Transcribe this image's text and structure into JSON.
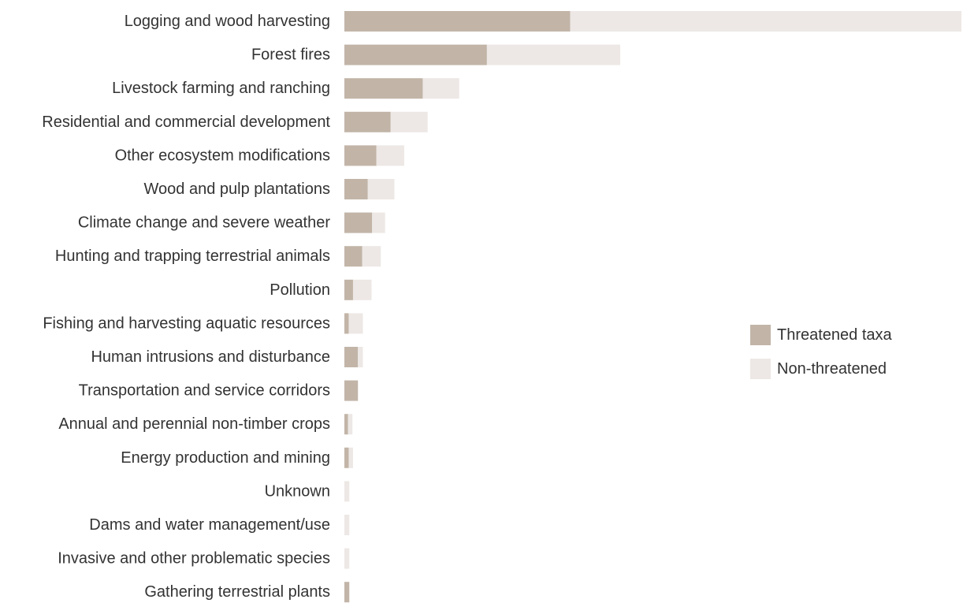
{
  "chart_data": {
    "type": "bar",
    "orientation": "horizontal",
    "stacked": true,
    "title": "",
    "xlabel": "",
    "ylabel": "",
    "xlim": [
      0,
      100
    ],
    "grid": false,
    "legend_position": "right",
    "categories": [
      "Logging and wood harvesting",
      "Forest fires",
      "Livestock farming and ranching",
      "Residential and commercial development",
      "Other ecosystem modifications",
      "Wood and pulp plantations",
      "Climate change and severe weather",
      "Hunting and trapping terrestrial animals",
      "Pollution",
      "Fishing and harvesting aquatic resources",
      "Human intrusions and disturbance",
      "Transportation and service corridors",
      "Annual and perennial non-timber crops",
      "Energy production and mining",
      "Unknown",
      "Dams and water management/use",
      "Invasive and other problematic species",
      "Gathering terrestrial plants"
    ],
    "series": [
      {
        "name": "Threatened taxa",
        "color": "#c2b5a8",
        "values": [
          36.6,
          23.1,
          12.7,
          7.5,
          5.2,
          3.8,
          4.5,
          2.9,
          1.4,
          0.7,
          2.2,
          2.2,
          0.6,
          0.7,
          0.0,
          0.0,
          0.0,
          0.8
        ]
      },
      {
        "name": "Non-threatened",
        "color": "#ede8e5",
        "values": [
          63.4,
          21.6,
          5.9,
          6.0,
          4.5,
          4.3,
          2.1,
          3.0,
          3.0,
          2.3,
          0.8,
          0.0,
          0.7,
          0.7,
          0.8,
          0.8,
          0.8,
          0.0
        ]
      }
    ]
  }
}
